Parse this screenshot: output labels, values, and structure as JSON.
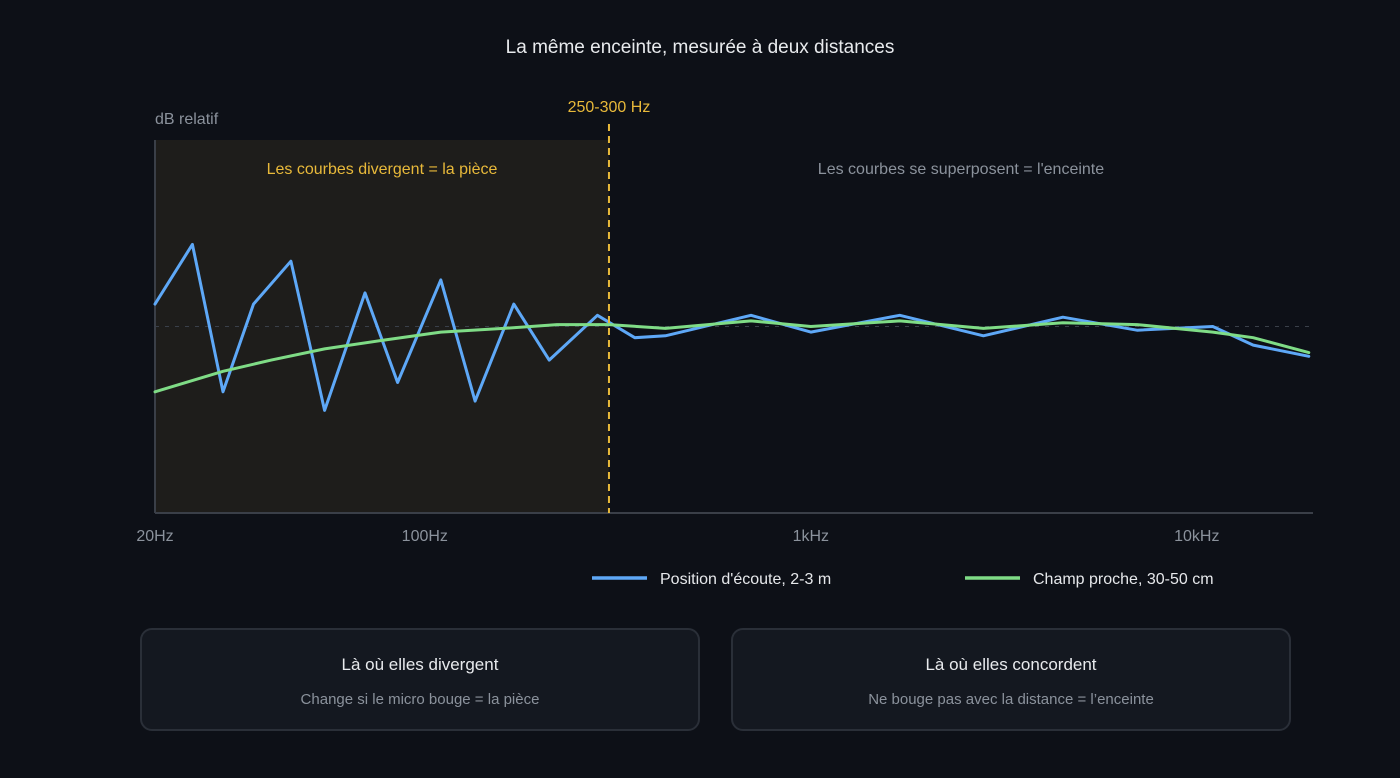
{
  "chart_data": {
    "type": "line",
    "title": "La même enceinte, mesurée à deux distances",
    "ylabel": "dB relatif",
    "xlabel": "",
    "x_scale": "log",
    "x_ticks": [
      {
        "value": 20,
        "label": "20Hz"
      },
      {
        "value": 100,
        "label": "100Hz"
      },
      {
        "value": 1000,
        "label": "1kHz"
      },
      {
        "value": 10000,
        "label": "10kHz"
      }
    ],
    "xlim": [
      20,
      20000
    ],
    "ylim": [
      -10,
      10
    ],
    "reference_level": 0,
    "grid": false,
    "legend_position": "bottom",
    "marker": {
      "label": "250-300 Hz",
      "value": 300
    },
    "regions": [
      {
        "label": "Les courbes divergent = la pièce",
        "from": 20,
        "to": 300,
        "highlighted": true
      },
      {
        "label": "Les courbes se superposent = l'enceinte",
        "from": 300,
        "to": 20000,
        "highlighted": false
      }
    ],
    "series": [
      {
        "name": "Position d'écoute, 2-3 m",
        "color": "#5ea8f7",
        "points": [
          [
            20,
            1.2
          ],
          [
            25,
            4.4
          ],
          [
            30,
            -3.5
          ],
          [
            36,
            1.2
          ],
          [
            45,
            3.5
          ],
          [
            55,
            -4.5
          ],
          [
            70,
            1.8
          ],
          [
            85,
            -3.0
          ],
          [
            110,
            2.5
          ],
          [
            135,
            -4.0
          ],
          [
            170,
            1.2
          ],
          [
            210,
            -1.8
          ],
          [
            280,
            0.6
          ],
          [
            350,
            -0.6
          ],
          [
            420,
            -0.5
          ],
          [
            700,
            0.6
          ],
          [
            1000,
            -0.3
          ],
          [
            1700,
            0.6
          ],
          [
            2800,
            -0.5
          ],
          [
            4500,
            0.5
          ],
          [
            7000,
            -0.2
          ],
          [
            11000,
            0.0
          ],
          [
            14000,
            -1.0
          ],
          [
            19500,
            -1.6
          ]
        ]
      },
      {
        "name": "Champ proche, 30-50 cm",
        "color": "#7fdc86",
        "points": [
          [
            20,
            -3.5
          ],
          [
            30,
            -2.4
          ],
          [
            40,
            -1.8
          ],
          [
            55,
            -1.2
          ],
          [
            80,
            -0.7
          ],
          [
            110,
            -0.3
          ],
          [
            160,
            -0.1
          ],
          [
            220,
            0.1
          ],
          [
            300,
            0.1
          ],
          [
            420,
            -0.1
          ],
          [
            700,
            0.3
          ],
          [
            1000,
            0.0
          ],
          [
            1700,
            0.3
          ],
          [
            2800,
            -0.1
          ],
          [
            4500,
            0.2
          ],
          [
            7000,
            0.1
          ],
          [
            11000,
            -0.3
          ],
          [
            14000,
            -0.6
          ],
          [
            19500,
            -1.4
          ]
        ]
      }
    ]
  },
  "cards": [
    {
      "title": "Là où elles divergent",
      "text": "Change si le micro bouge = la pièce"
    },
    {
      "title": "Là où elles concordent",
      "text": "Ne bouge pas avec la distance = l’enceinte"
    }
  ],
  "colors": {
    "background": "#0d1017",
    "highlight_region": "#1e1d1b",
    "marker": "#e8b93a",
    "axis": "#3a3f48",
    "muted_text": "#8b929c"
  }
}
